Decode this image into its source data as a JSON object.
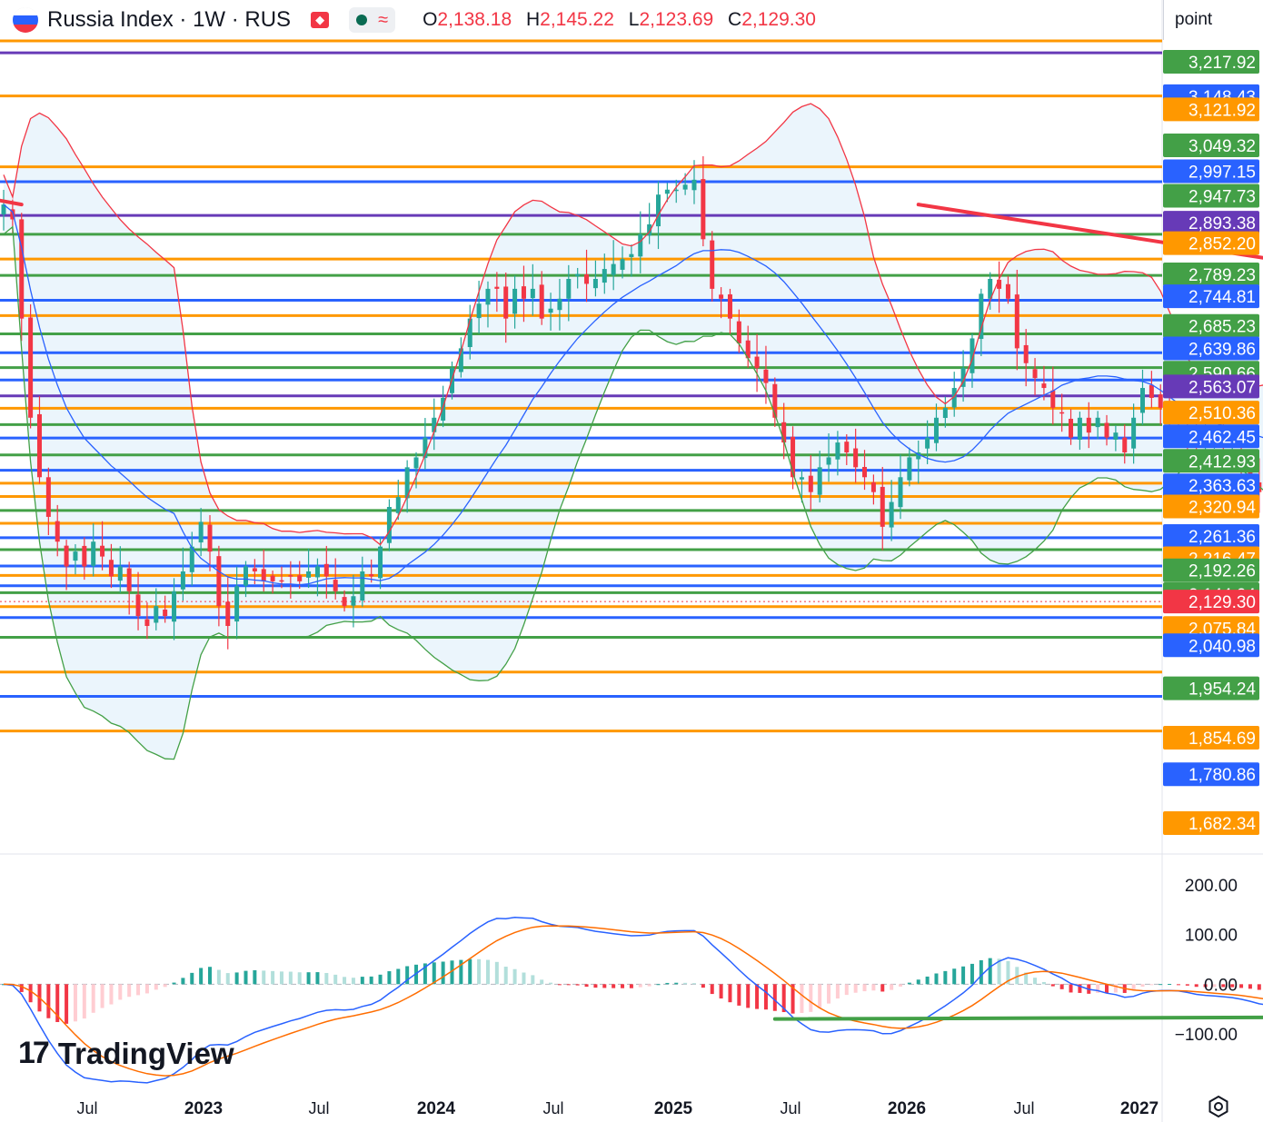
{
  "header": {
    "title": "Russia Index · 1W · RUS",
    "flag_colors": [
      "#ffffff",
      "#2962ff",
      "#f23645"
    ],
    "badge_label": "~",
    "ohlc": [
      {
        "key": "O",
        "value": "2,138.18"
      },
      {
        "key": "H",
        "value": "2,145.22"
      },
      {
        "key": "L",
        "value": "2,123.69"
      },
      {
        "key": "C",
        "value": "2,129.30"
      }
    ]
  },
  "scale_mode": "point",
  "watermark": "TradingView",
  "colors": {
    "up": "#26a69a",
    "down": "#f23645",
    "orange": "#ff9800",
    "blue": "#2962ff",
    "green": "#43a047",
    "red": "#f23645",
    "purple": "#673ab7",
    "macd": "#2962ff",
    "signal": "#ff6d00",
    "band_fill": "#e6f2fb"
  },
  "chart_data": [
    {
      "type": "candlestick",
      "title": "Russia Index · 1W · RUS",
      "ylim": [
        1640,
        3260
      ],
      "x_tick_labels": [
        "Jul",
        "2023",
        "Jul",
        "2024",
        "Jul",
        "2025",
        "Jul",
        "2026",
        "Jul",
        "2027"
      ],
      "x_tick_weeks": [
        0,
        26,
        52,
        78,
        104,
        130,
        156,
        182,
        208,
        234
      ],
      "last_close": 2129.3,
      "price_levels": [
        {
          "value": 3217.92,
          "label": "3,217.92",
          "color": "#43a047"
        },
        {
          "value": 3148.43,
          "label": "3,148.43",
          "color": "#2962ff"
        },
        {
          "value": 3121.92,
          "label": "3,121.92",
          "color": "#ff9800"
        },
        {
          "value": 3049.32,
          "label": "3,049.32",
          "color": "#43a047"
        },
        {
          "value": 2997.15,
          "label": "2,997.15",
          "color": "#2962ff"
        },
        {
          "value": 2947.73,
          "label": "2,947.73",
          "color": "#43a047"
        },
        {
          "value": 2893.38,
          "label": "2,893.38",
          "color": "#673ab7"
        },
        {
          "value": 2852.2,
          "label": "2,852.20",
          "color": "#ff9800"
        },
        {
          "value": 2789.23,
          "label": "2,789.23",
          "color": "#43a047"
        },
        {
          "value": 2744.81,
          "label": "2,744.81",
          "color": "#2962ff"
        },
        {
          "value": 2685.23,
          "label": "2,685.23",
          "color": "#43a047"
        },
        {
          "value": 2639.86,
          "label": "2,639.86",
          "color": "#2962ff"
        },
        {
          "value": 2590.66,
          "label": "2,590.66",
          "color": "#43a047"
        },
        {
          "value": 2563.07,
          "label": "2,563.07",
          "color": "#673ab7"
        },
        {
          "value": 2510.36,
          "label": "2,510.36",
          "color": "#ff9800"
        },
        {
          "value": 2462.45,
          "label": "2,462.45",
          "color": "#2962ff"
        },
        {
          "value": 2412.93,
          "label": "2,412.93",
          "color": "#43a047"
        },
        {
          "value": 2363.63,
          "label": "2,363.63",
          "color": "#2962ff"
        },
        {
          "value": 2320.94,
          "label": "2,320.94",
          "color": "#ff9800"
        },
        {
          "value": 2261.36,
          "label": "2,261.36",
          "color": "#2962ff"
        },
        {
          "value": 2216.47,
          "label": "2,216.47",
          "color": "#ff9800"
        },
        {
          "value": 2192.26,
          "label": "2,192.26",
          "color": "#43a047"
        },
        {
          "value": 2144.04,
          "label": "2,144.04",
          "color": "#43a047"
        },
        {
          "value": 2129.3,
          "label": "2,129.30",
          "color": "#f23645"
        },
        {
          "value": 2075.84,
          "label": "2,075.84",
          "color": "#ff9800"
        },
        {
          "value": 2040.98,
          "label": "2,040.98",
          "color": "#2962ff"
        },
        {
          "value": 1954.24,
          "label": "1,954.24",
          "color": "#43a047"
        },
        {
          "value": 1854.69,
          "label": "1,854.69",
          "color": "#ff9800"
        },
        {
          "value": 1780.86,
          "label": "1,780.86",
          "color": "#2962ff"
        },
        {
          "value": 1682.34,
          "label": "1,682.34",
          "color": "#ff9800"
        }
      ],
      "unlabeled_levels": [
        {
          "value": 3260,
          "color": "#ff9800"
        },
        {
          "value": 3236,
          "color": "#673ab7"
        },
        {
          "value": 3149,
          "color": "#ff9800"
        },
        {
          "value": 3006,
          "color": "#ff9800"
        },
        {
          "value": 2976,
          "color": "#2962ff"
        },
        {
          "value": 2908,
          "color": "#673ab7"
        },
        {
          "value": 2870,
          "color": "#43a047"
        },
        {
          "value": 2820,
          "color": "#ff9800"
        },
        {
          "value": 2787,
          "color": "#43a047"
        },
        {
          "value": 2737,
          "color": "#2962ff"
        },
        {
          "value": 2706,
          "color": "#ff9800"
        },
        {
          "value": 2669,
          "color": "#43a047"
        },
        {
          "value": 2631,
          "color": "#2962ff"
        },
        {
          "value": 2601,
          "color": "#43a047"
        },
        {
          "value": 2576,
          "color": "#2962ff"
        },
        {
          "value": 2544,
          "color": "#673ab7"
        },
        {
          "value": 2519,
          "color": "#ff9800"
        },
        {
          "value": 2486,
          "color": "#43a047"
        },
        {
          "value": 2459,
          "color": "#2962ff"
        },
        {
          "value": 2425,
          "color": "#43a047"
        },
        {
          "value": 2394,
          "color": "#2962ff"
        },
        {
          "value": 2368,
          "color": "#ff9800"
        },
        {
          "value": 2341,
          "color": "#ff9800"
        },
        {
          "value": 2313,
          "color": "#43a047"
        },
        {
          "value": 2287,
          "color": "#ff9800"
        },
        {
          "value": 2258,
          "color": "#2962ff"
        },
        {
          "value": 2234,
          "color": "#43a047"
        },
        {
          "value": 2201,
          "color": "#2962ff"
        },
        {
          "value": 2182,
          "color": "#ff9800"
        },
        {
          "value": 2161,
          "color": "#2962ff"
        },
        {
          "value": 2147,
          "color": "#43a047"
        },
        {
          "value": 2119,
          "color": "#ff9800"
        },
        {
          "value": 2097,
          "color": "#2962ff"
        },
        {
          "value": 2057,
          "color": "#43a047"
        },
        {
          "value": 1987,
          "color": "#ff9800"
        },
        {
          "value": 1938,
          "color": "#2962ff"
        },
        {
          "value": 1868,
          "color": "#ff9800"
        }
      ],
      "trendlines": [
        {
          "from": [
            -1,
            2940
          ],
          "to": [
            2,
            2930
          ],
          "color": "#f23645"
        },
        {
          "from": [
            102,
            2930
          ],
          "to": [
            220,
            2600
          ],
          "color": "#f23645"
        },
        {
          "from": [
            189,
            2540
          ],
          "to": [
            216,
            2210
          ],
          "color": "#ff9800"
        },
        {
          "from": [
            209,
            1990
          ],
          "to": [
            214,
            2040
          ],
          "color": "#ff9800"
        }
      ],
      "closes": [
        2930,
        2900,
        2700,
        2500,
        2380,
        2300,
        2250,
        2200,
        2230,
        2200,
        2250,
        2220,
        2180,
        2200,
        2150,
        2100,
        2080,
        2120,
        2100,
        2150,
        2190,
        2240,
        2290,
        2230,
        2120,
        2080,
        2160,
        2200,
        2190,
        2170,
        2170,
        2170,
        2180,
        2170,
        2190,
        2200,
        2180,
        2150,
        2120,
        2140,
        2190,
        2180,
        2240,
        2320,
        2340,
        2400,
        2420,
        2460,
        2500,
        2540,
        2600,
        2640,
        2700,
        2730,
        2760,
        2760,
        2700,
        2760,
        2740,
        2760,
        2700,
        2720,
        2740,
        2780,
        2790,
        2770,
        2780,
        2800,
        2810,
        2820,
        2830,
        2870,
        2890,
        2950,
        2960,
        2960,
        2970,
        2980,
        2860,
        2760,
        2740,
        2700,
        2650,
        2620,
        2600,
        2570,
        2500,
        2450,
        2380,
        2380,
        2350,
        2400,
        2420,
        2450,
        2430,
        2400,
        2380,
        2350,
        2280,
        2330,
        2380,
        2420,
        2430,
        2460,
        2500,
        2520,
        2560,
        2600,
        2660,
        2750,
        2780,
        2760,
        2740,
        2640,
        2610,
        2580,
        2560,
        2520,
        2510,
        2460,
        2500,
        2470,
        2500,
        2460,
        2470,
        2430,
        2500,
        2560,
        2540,
        2520,
        2510,
        2490,
        2460,
        2440,
        2450,
        2450,
        2440,
        2430,
        2400,
        2380,
        2350,
        2360,
        2380,
        2360,
        2350,
        2380,
        2400,
        2420,
        2440,
        2460,
        2480,
        2470,
        2460,
        2490,
        2500,
        2490,
        2480,
        2470,
        2490,
        2500,
        2510,
        2520,
        2540,
        2520,
        2480,
        2470,
        2460,
        2420,
        2400,
        2390,
        2340,
        2300,
        2260,
        2200,
        2150,
        2100,
        1960,
        2060,
        2120,
        2150,
        2180,
        2140,
        2120,
        2129.3
      ],
      "macd": {
        "ylim": [
          -200,
          230
        ],
        "tick_values": [
          200,
          100,
          0,
          -100
        ],
        "tick_labels": [
          "200.00",
          "100.00",
          "0.00",
          "−100.00"
        ],
        "green_trendline": {
          "from": [
            86,
            -70
          ],
          "to": [
            223,
            -62
          ],
          "color": "#43a047"
        }
      }
    }
  ]
}
